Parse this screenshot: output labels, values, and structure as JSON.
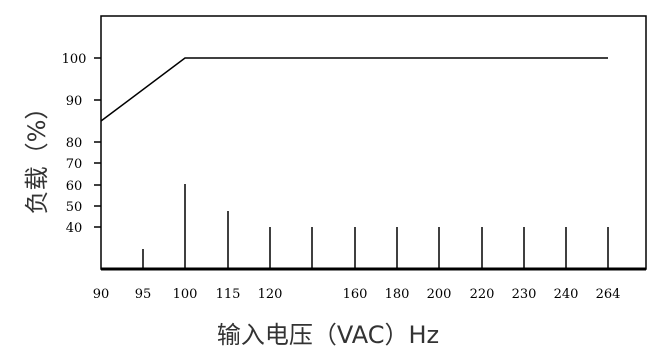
{
  "chart_data": {
    "type": "line",
    "ylabel": "负载（%）",
    "xlabel": "输入电压（VAC）Hz",
    "x_ticks": [
      "90",
      "95",
      "100",
      "115",
      "120",
      "160",
      "180",
      "200",
      "220",
      "230",
      "240",
      "264"
    ],
    "y_ticks": [
      "100",
      "90",
      "80",
      "70",
      "60",
      "50",
      "40"
    ],
    "series": [
      {
        "points": [
          {
            "x": "90",
            "y": 85
          },
          {
            "x": "100",
            "y": 100
          },
          {
            "x": "264",
            "y": 100
          }
        ]
      }
    ],
    "tick_marks": [
      {
        "x": "95",
        "height": 20
      },
      {
        "x": "100",
        "height": 85
      },
      {
        "x": "115",
        "height": 58
      },
      {
        "x": "120",
        "height": 42
      },
      {
        "x": "unlabeled",
        "height": 42
      },
      {
        "x": "160",
        "height": 42
      },
      {
        "x": "180",
        "height": 42
      },
      {
        "x": "200",
        "height": 42
      },
      {
        "x": "220",
        "height": 42
      },
      {
        "x": "230",
        "height": 42
      },
      {
        "x": "240",
        "height": 42
      },
      {
        "x": "264",
        "height": 42
      }
    ],
    "grid": false,
    "line_color": "#000000"
  }
}
